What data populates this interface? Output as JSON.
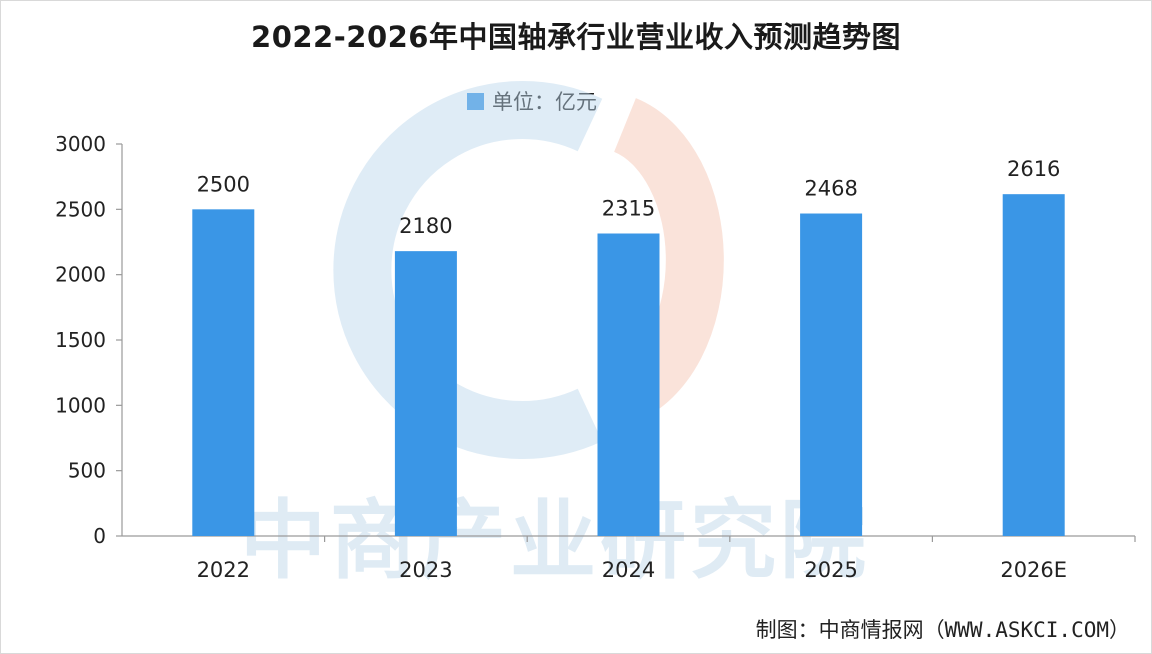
{
  "chart_data": {
    "type": "bar",
    "title": "2022-2026年中国轴承行业营业收入预测趋势图",
    "legend": [
      "单位：亿元"
    ],
    "legend_position": "top-center",
    "categories": [
      "2022",
      "2023",
      "2024",
      "2025",
      "2026E"
    ],
    "series": [
      {
        "name": "单位：亿元",
        "values": [
          2500,
          2180,
          2315,
          2468,
          2616
        ]
      }
    ],
    "data_labels": [
      "2500",
      "2180",
      "2315",
      "2468",
      "2616"
    ],
    "ylim": [
      0,
      3000
    ],
    "y_ticks": [
      "0",
      "500",
      "1000",
      "1500",
      "2000",
      "2500",
      "3000"
    ],
    "grid": false,
    "xlabel": "",
    "ylabel": ""
  },
  "colors": {
    "bar": "#3a96e6",
    "axis": "#9a9a9a",
    "text": "#222222"
  },
  "source": "制图：中商情报网（WWW.ASKCI.COM）",
  "watermark": "中商产业研究院"
}
